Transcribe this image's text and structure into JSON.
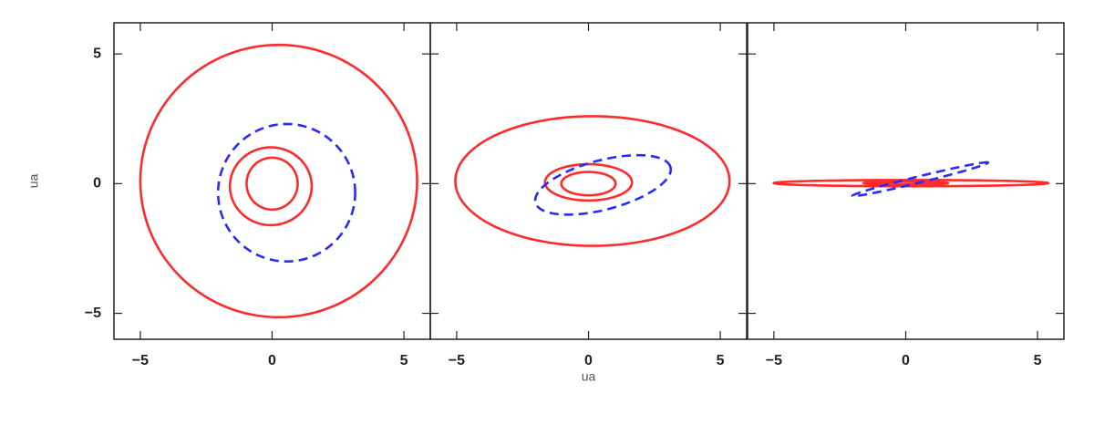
{
  "chart_data": [
    {
      "type": "orbit",
      "ylabel": "ua",
      "xlim": [
        -6,
        6
      ],
      "ylim": [
        -6,
        6.2
      ],
      "xticks": [
        {
          "value": -5,
          "label": "−5"
        },
        0,
        5
      ],
      "yticks": [
        {
          "value": -5,
          "label": "−5"
        },
        0,
        5
      ],
      "series": [
        {
          "color": "#ff2a2a",
          "linestyle": "solid",
          "ellipse": {
            "cx": 0.25,
            "cy": 0.1,
            "rx": 5.25,
            "ry": 5.25,
            "angle": 0
          }
        },
        {
          "color": "#ff2a2a",
          "linestyle": "solid",
          "ellipse": {
            "cx": -0.05,
            "cy": -0.1,
            "rx": 1.55,
            "ry": 1.5,
            "angle": 0
          }
        },
        {
          "color": "#ff2a2a",
          "linestyle": "solid",
          "ellipse": {
            "cx": 0,
            "cy": 0,
            "rx": 0.97,
            "ry": 1.0,
            "angle": 0
          }
        },
        {
          "color": "#2a2aff",
          "linestyle": "dashed",
          "ellipse": {
            "cx": 0.55,
            "cy": -0.35,
            "rx": 2.6,
            "ry": 2.65,
            "angle": 0
          }
        }
      ]
    },
    {
      "type": "orbit",
      "xlabel": "ua",
      "xlim": [
        -6,
        6
      ],
      "ylim": [
        -6,
        6.2
      ],
      "sharey": true,
      "xticks": [
        {
          "value": -5,
          "label": "−5"
        },
        0,
        5
      ],
      "series": [
        {
          "color": "#ff2a2a",
          "linestyle": "solid",
          "ellipse": {
            "cx": 0.15,
            "cy": 0.1,
            "rx": 5.2,
            "ry": 2.5,
            "angle": 0
          }
        },
        {
          "color": "#ff2a2a",
          "linestyle": "solid",
          "ellipse": {
            "cx": 0,
            "cy": 0.05,
            "rx": 1.65,
            "ry": 0.7,
            "angle": 0
          }
        },
        {
          "color": "#ff2a2a",
          "linestyle": "solid",
          "ellipse": {
            "cx": 0,
            "cy": 0,
            "rx": 1.03,
            "ry": 0.45,
            "angle": 0
          }
        },
        {
          "color": "#2a2aff",
          "linestyle": "dashed",
          "ellipse": {
            "cx": 0.55,
            "cy": -0.05,
            "rx": 2.65,
            "ry": 0.95,
            "angle": 15
          }
        }
      ]
    },
    {
      "type": "orbit",
      "xlim": [
        -6,
        6
      ],
      "ylim": [
        -6,
        6.2
      ],
      "sharey": true,
      "xticks": [
        {
          "value": -5,
          "label": "−5"
        },
        0,
        5
      ],
      "series": [
        {
          "color": "#ff2a2a",
          "linestyle": "solid",
          "ellipse": {
            "cx": 0.2,
            "cy": 0.02,
            "rx": 5.2,
            "ry": 0.12,
            "angle": 0
          }
        },
        {
          "color": "#ff2a2a",
          "linestyle": "solid",
          "ellipse": {
            "cx": 0,
            "cy": 0.02,
            "rx": 1.6,
            "ry": 0.06,
            "angle": 0
          }
        },
        {
          "color": "#ff2a2a",
          "linestyle": "solid",
          "ellipse": {
            "cx": 0,
            "cy": 0.02,
            "rx": 1.0,
            "ry": 0.05,
            "angle": 0
          }
        },
        {
          "color": "#2a2aff",
          "linestyle": "dashed",
          "ellipse": {
            "cx": 0.55,
            "cy": 0.17,
            "rx": 2.65,
            "ry": 0.12,
            "angle": 14
          }
        }
      ]
    }
  ]
}
